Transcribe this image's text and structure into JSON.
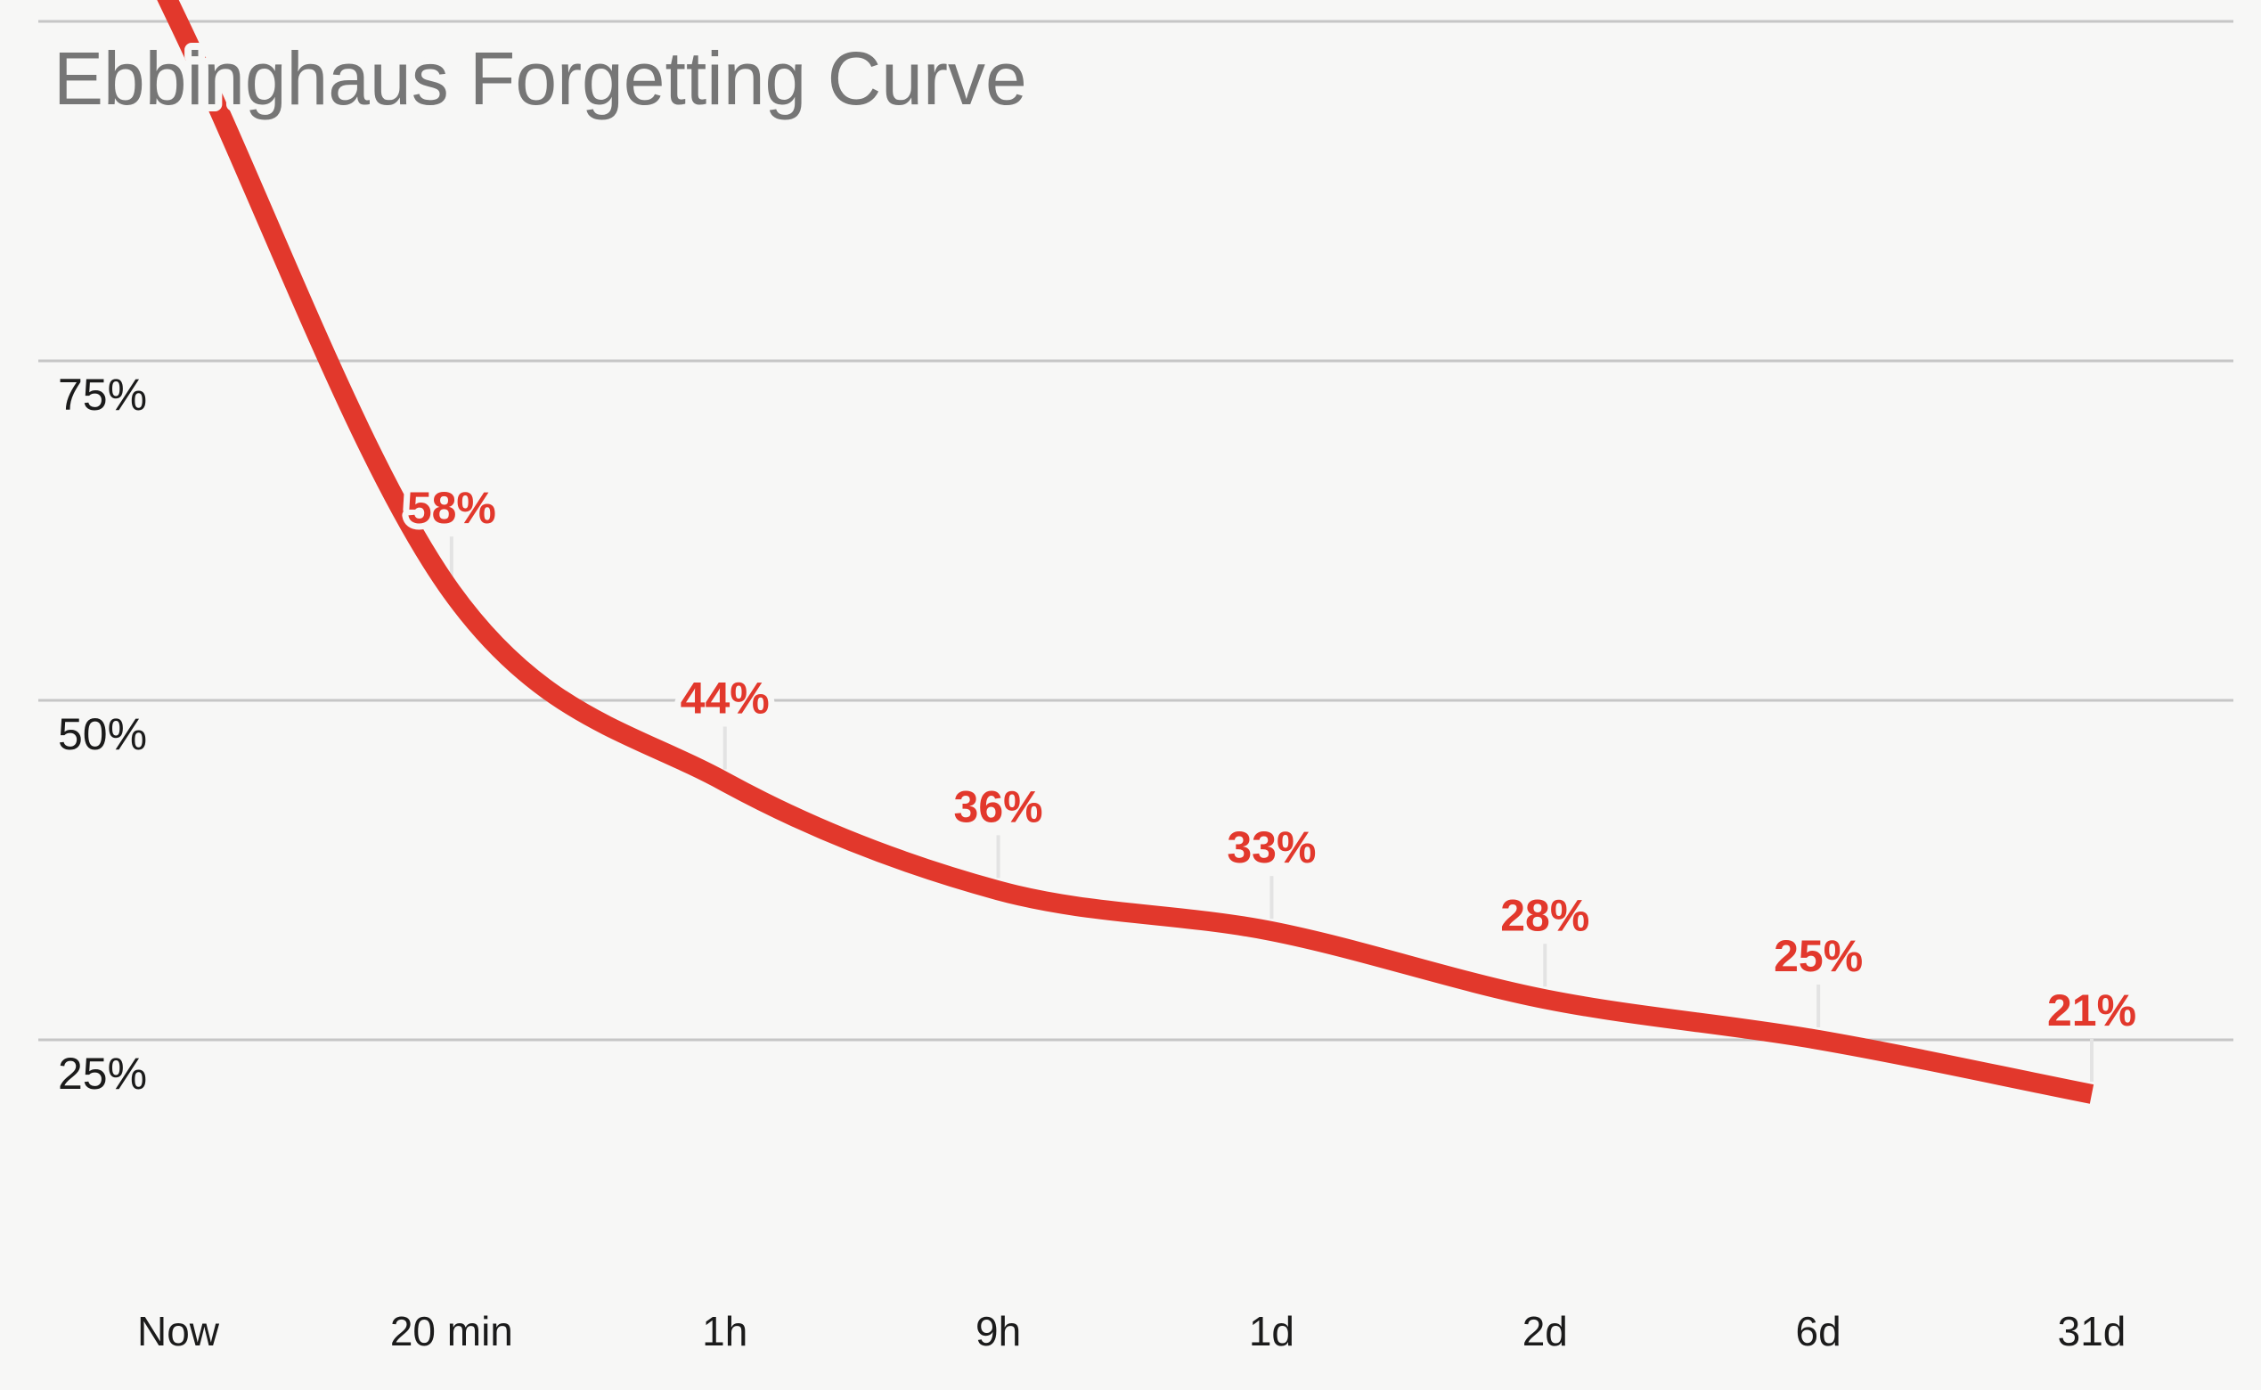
{
  "chart_data": {
    "type": "line",
    "title": "Ebbinghaus Forgetting Curve",
    "x": [
      "Now",
      "20 min",
      "1h",
      "9h",
      "1d",
      "2d",
      "6d",
      "31d"
    ],
    "values": [
      100,
      58,
      44,
      36,
      33,
      28,
      25,
      21
    ],
    "point_labels": [
      "",
      "58%",
      "44%",
      "36%",
      "33%",
      "28%",
      "25%",
      "21%"
    ],
    "y_ticks": [
      {
        "label": "75%",
        "value": 75
      },
      {
        "label": "50%",
        "value": 50
      },
      {
        "label": "25%",
        "value": 25
      }
    ],
    "y_gridline_values": [
      100,
      75,
      50,
      25
    ],
    "ylim": [
      0,
      100
    ],
    "grid": true,
    "legend": "none",
    "xlabel": "",
    "ylabel": "",
    "colors": {
      "line": "#e2382c",
      "point_label": "#e2382c",
      "title": "#767676",
      "axis_text": "#1b1b1b",
      "gridline": "#c6c6c6",
      "leader": "#e3e3e3",
      "background": "#f7f7f6"
    }
  }
}
